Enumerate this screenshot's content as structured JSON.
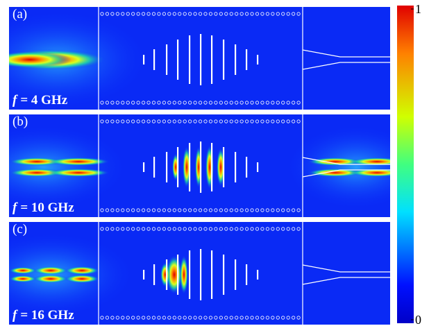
{
  "panels": [
    {
      "label": "(a)",
      "freq_symbol": "f",
      "freq_text": "= 4 GHz"
    },
    {
      "label": "(b)",
      "freq_symbol": "f",
      "freq_text": "= 10 GHz"
    },
    {
      "label": "(c)",
      "freq_symbol": "f",
      "freq_text": "= 16 GHz"
    }
  ],
  "colorbar": {
    "range": [
      0,
      1
    ],
    "ticks": [
      0,
      1
    ]
  }
}
